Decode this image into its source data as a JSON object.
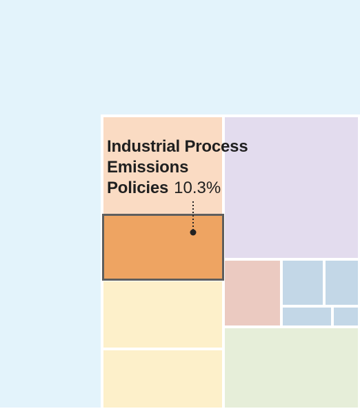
{
  "highlight": {
    "name_lines": [
      "Industrial Process",
      "Emissions",
      "Policies"
    ],
    "value": "10.3%"
  },
  "colors": {
    "outer_background": "#e3f3fb",
    "panel_border": "#ffffff",
    "peach_light": "#fadbc3",
    "orange_highlight": "#eea462",
    "highlight_border": "#5e5e5e",
    "cream": "#fdf0ca",
    "lavender": "#e3dcee",
    "pink": "#ebcac1",
    "light_blue": "#c3d7e7",
    "light_green": "#e6eed9",
    "callout": "#222222"
  }
}
